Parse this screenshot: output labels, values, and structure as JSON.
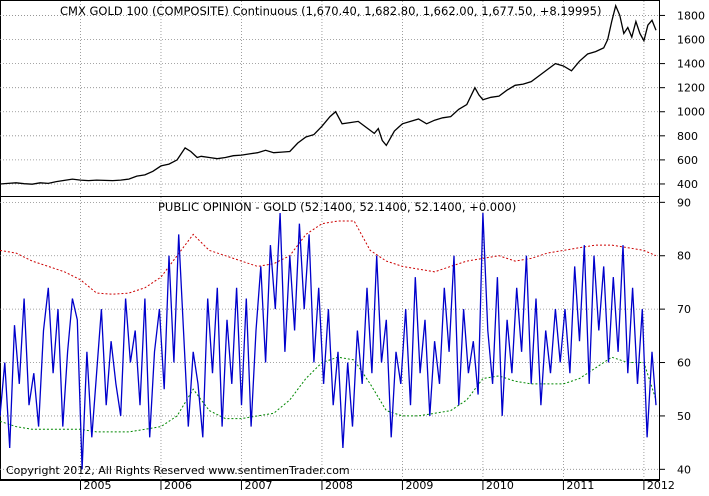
{
  "chart_data": [
    {
      "type": "line",
      "title": "CMX GOLD 100 (COMPOSITE) Continuous (1,670.40, 1,682.80, 1,662.00, 1,677.50, +8.19995)",
      "ylim": [
        300,
        1920
      ],
      "yticks": [
        400,
        600,
        800,
        1000,
        1200,
        1400,
        1600,
        1800
      ],
      "x_range": [
        2004.0,
        2012.2
      ],
      "series": [
        {
          "x": [
            2004.0,
            2004.1,
            2004.2,
            2004.3,
            2004.4,
            2004.5,
            2004.6,
            2004.7,
            2004.8,
            2004.9,
            2005.0,
            2005.1,
            2005.2,
            2005.3,
            2005.4,
            2005.5,
            2005.6,
            2005.7,
            2005.8,
            2005.9,
            2006.0,
            2006.1,
            2006.2,
            2006.3,
            2006.37,
            2006.45,
            2006.5,
            2006.6,
            2006.7,
            2006.8,
            2006.9,
            2007.0,
            2007.1,
            2007.2,
            2007.3,
            2007.4,
            2007.5,
            2007.6,
            2007.7,
            2007.8,
            2007.9,
            2008.0,
            2008.1,
            2008.17,
            2008.25,
            2008.35,
            2008.45,
            2008.55,
            2008.65,
            2008.7,
            2008.75,
            2008.8,
            2008.85,
            2008.9,
            2008.95,
            2009.0,
            2009.1,
            2009.2,
            2009.3,
            2009.4,
            2009.5,
            2009.6,
            2009.7,
            2009.8,
            2009.9,
            2009.95,
            2010.0,
            2010.1,
            2010.2,
            2010.3,
            2010.4,
            2010.5,
            2010.6,
            2010.7,
            2010.8,
            2010.9,
            2011.0,
            2011.1,
            2011.2,
            2011.3,
            2011.4,
            2011.5,
            2011.55,
            2011.6,
            2011.65,
            2011.7,
            2011.75,
            2011.8,
            2011.85,
            2011.9,
            2011.95,
            2012.0,
            2012.05,
            2012.1,
            2012.15
          ],
          "values": [
            400,
            405,
            410,
            402,
            398,
            410,
            405,
            420,
            430,
            440,
            432,
            428,
            432,
            430,
            428,
            432,
            440,
            465,
            475,
            505,
            550,
            565,
            600,
            700,
            670,
            620,
            630,
            620,
            610,
            620,
            635,
            640,
            650,
            660,
            680,
            660,
            665,
            670,
            740,
            790,
            810,
            880,
            960,
            1000,
            900,
            910,
            920,
            870,
            820,
            860,
            760,
            720,
            780,
            840,
            870,
            900,
            920,
            940,
            900,
            930,
            950,
            960,
            1020,
            1060,
            1200,
            1140,
            1100,
            1120,
            1130,
            1180,
            1220,
            1230,
            1250,
            1300,
            1350,
            1400,
            1380,
            1340,
            1420,
            1480,
            1500,
            1530,
            1600,
            1750,
            1880,
            1800,
            1650,
            1700,
            1620,
            1750,
            1650,
            1590,
            1720,
            1760,
            1677
          ]
        }
      ]
    },
    {
      "type": "line",
      "title": "PUBLIC OPINION - GOLD (52.1400, 52.1400, 52.1400, +0.000)",
      "ylim": [
        38,
        91
      ],
      "yticks": [
        40,
        50,
        60,
        70,
        80,
        90
      ],
      "x_range": [
        2004.0,
        2012.2
      ],
      "series": [
        {
          "name": "",
          "style": "dotted",
          "x": [
            2004.0,
            2004.2,
            2004.4,
            2004.6,
            2004.8,
            2005.0,
            2005.2,
            2005.4,
            2005.6,
            2005.8,
            2006.0,
            2006.1,
            2006.2,
            2006.3,
            2006.4,
            2006.5,
            2006.6,
            2006.8,
            2007.0,
            2007.2,
            2007.4,
            2007.6,
            2007.8,
            2008.0,
            2008.2,
            2008.4,
            2008.6,
            2008.8,
            2009.0,
            2009.2,
            2009.4,
            2009.6,
            2009.8,
            2010.0,
            2010.2,
            2010.4,
            2010.6,
            2010.8,
            2011.0,
            2011.2,
            2011.4,
            2011.6,
            2011.8,
            2012.0,
            2012.15
          ],
          "values": [
            81,
            80.5,
            79,
            78,
            77,
            75.5,
            73,
            72.8,
            73,
            74,
            76,
            78,
            80,
            82,
            84,
            82.5,
            81,
            80,
            79,
            78,
            78.5,
            80,
            84,
            86,
            86.5,
            86.5,
            81,
            79,
            78,
            77.5,
            77,
            78,
            79,
            79.5,
            80,
            79,
            79.5,
            80.5,
            81,
            81.5,
            82,
            82,
            81.5,
            81,
            80
          ]
        },
        {
          "name": "",
          "style": "dotted",
          "x": [
            2004.0,
            2004.2,
            2004.4,
            2004.6,
            2004.8,
            2005.0,
            2005.2,
            2005.4,
            2005.6,
            2005.8,
            2006.0,
            2006.2,
            2006.4,
            2006.6,
            2006.8,
            2007.0,
            2007.2,
            2007.4,
            2007.6,
            2007.8,
            2008.0,
            2008.2,
            2008.4,
            2008.6,
            2008.8,
            2009.0,
            2009.2,
            2009.4,
            2009.6,
            2009.8,
            2010.0,
            2010.2,
            2010.4,
            2010.6,
            2010.8,
            2011.0,
            2011.2,
            2011.4,
            2011.6,
            2011.8,
            2012.0,
            2012.15
          ],
          "values": [
            49,
            48,
            47.5,
            47.5,
            47.5,
            47.5,
            47,
            47,
            47,
            47.5,
            48,
            50,
            55,
            51,
            49.5,
            49.5,
            50,
            50.5,
            53,
            57,
            60,
            61,
            60.5,
            56,
            51,
            50,
            50,
            50.5,
            51,
            53,
            57,
            57.5,
            56.5,
            56,
            56,
            56,
            57,
            59,
            61,
            60,
            60,
            53
          ]
        },
        {
          "name": "",
          "style": "solid",
          "x": [
            2004.0,
            2004.06,
            2004.12,
            2004.18,
            2004.24,
            2004.3,
            2004.36,
            2004.42,
            2004.48,
            2004.54,
            2004.6,
            2004.66,
            2004.72,
            2004.78,
            2004.84,
            2004.9,
            2004.96,
            2005.02,
            2005.08,
            2005.14,
            2005.2,
            2005.26,
            2005.32,
            2005.38,
            2005.44,
            2005.5,
            2005.56,
            2005.62,
            2005.68,
            2005.74,
            2005.8,
            2005.86,
            2005.92,
            2005.98,
            2006.04,
            2006.1,
            2006.16,
            2006.22,
            2006.28,
            2006.34,
            2006.4,
            2006.46,
            2006.52,
            2006.58,
            2006.64,
            2006.7,
            2006.76,
            2006.82,
            2006.88,
            2006.94,
            2007.0,
            2007.06,
            2007.12,
            2007.18,
            2007.24,
            2007.3,
            2007.36,
            2007.42,
            2007.48,
            2007.54,
            2007.6,
            2007.66,
            2007.72,
            2007.78,
            2007.84,
            2007.9,
            2007.96,
            2008.02,
            2008.08,
            2008.14,
            2008.2,
            2008.26,
            2008.32,
            2008.38,
            2008.44,
            2008.5,
            2008.56,
            2008.62,
            2008.68,
            2008.74,
            2008.8,
            2008.86,
            2008.92,
            2008.98,
            2009.04,
            2009.1,
            2009.16,
            2009.22,
            2009.28,
            2009.34,
            2009.4,
            2009.46,
            2009.52,
            2009.58,
            2009.64,
            2009.7,
            2009.76,
            2009.82,
            2009.88,
            2009.94,
            2010.0,
            2010.06,
            2010.12,
            2010.18,
            2010.24,
            2010.3,
            2010.36,
            2010.42,
            2010.48,
            2010.54,
            2010.6,
            2010.66,
            2010.72,
            2010.78,
            2010.84,
            2010.9,
            2010.96,
            2011.02,
            2011.08,
            2011.14,
            2011.2,
            2011.26,
            2011.32,
            2011.38,
            2011.44,
            2011.5,
            2011.56,
            2011.62,
            2011.68,
            2011.74,
            2011.8,
            2011.86,
            2011.92,
            2011.98,
            2012.04,
            2012.1,
            2012.15
          ],
          "values": [
            50,
            60,
            44,
            67,
            56,
            72,
            52,
            58,
            48,
            66,
            74,
            58,
            70,
            48,
            62,
            72,
            68,
            40,
            62,
            46,
            58,
            70,
            52,
            64,
            56,
            50,
            72,
            60,
            66,
            52,
            72,
            46,
            62,
            70,
            55,
            80,
            60,
            84,
            66,
            48,
            62,
            56,
            46,
            72,
            58,
            74,
            48,
            68,
            56,
            74,
            52,
            72,
            48,
            66,
            78,
            60,
            82,
            70,
            88,
            62,
            80,
            66,
            86,
            70,
            84,
            60,
            74,
            56,
            70,
            52,
            62,
            44,
            60,
            48,
            66,
            56,
            74,
            58,
            80,
            60,
            68,
            46,
            62,
            56,
            70,
            52,
            76,
            58,
            68,
            50,
            64,
            56,
            74,
            62,
            80,
            52,
            70,
            58,
            64,
            54,
            88,
            66,
            56,
            76,
            50,
            68,
            58,
            74,
            62,
            80,
            56,
            72,
            52,
            66,
            58,
            70,
            60,
            70,
            58,
            78,
            64,
            82,
            56,
            80,
            66,
            78,
            60,
            76,
            62,
            82,
            58,
            74,
            56,
            70,
            46,
            62,
            52
          ]
        }
      ]
    }
  ],
  "x_axis": {
    "labels": [
      "2005",
      "2006",
      "2007",
      "2008",
      "2009",
      "2010",
      "2011",
      "2012"
    ]
  },
  "copyright": "Copyright 2012, All Rights Reserved  www.sentimenTrader.com",
  "colors": {
    "gold_line": "#000000",
    "opinion_line": "#0000cc",
    "upper_band": "#cc0000",
    "lower_band": "#008800"
  }
}
